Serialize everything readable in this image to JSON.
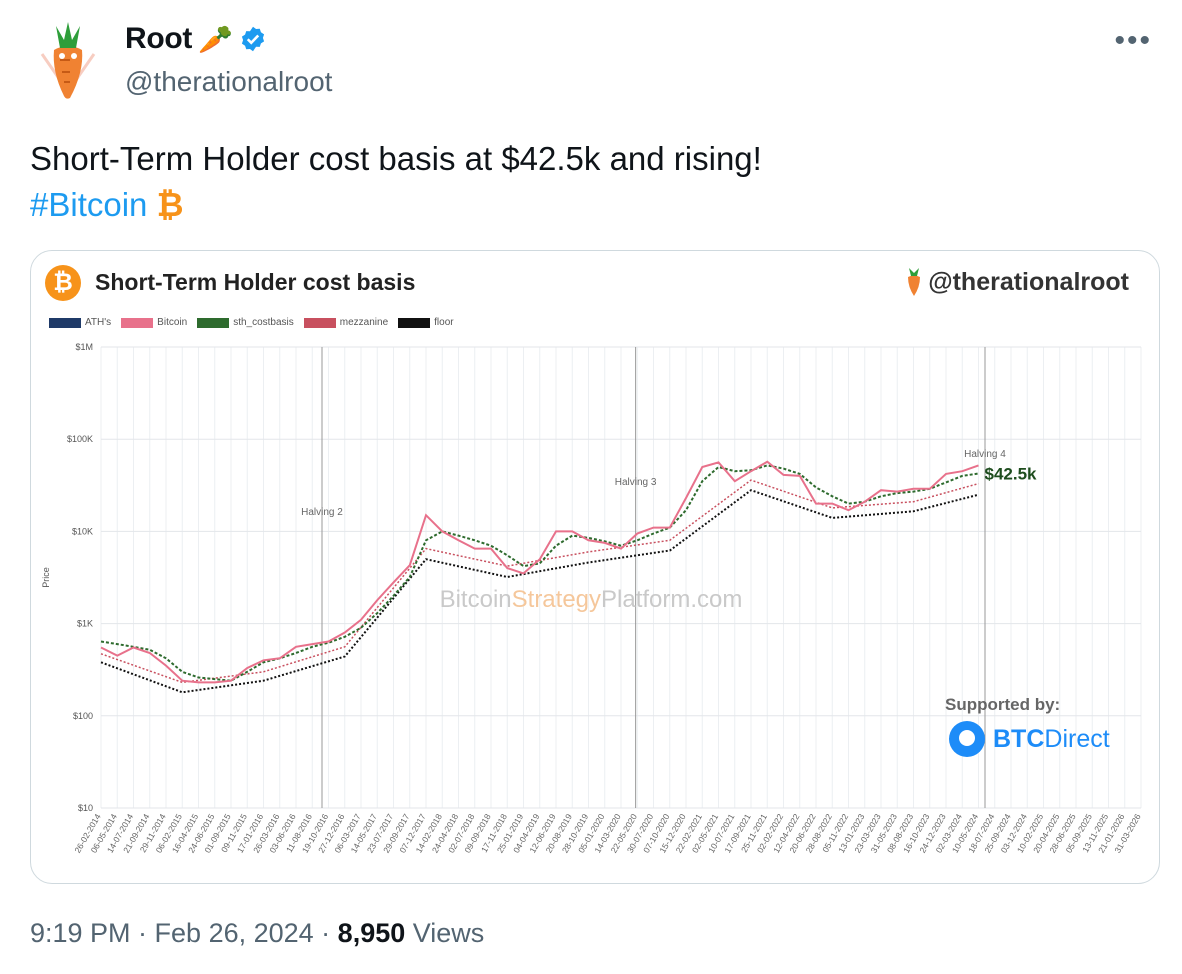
{
  "author": {
    "display_name": "Root",
    "name_emoji": "🥕",
    "handle": "@therationalroot",
    "verified": true
  },
  "more_label": "•••",
  "tweet": {
    "text": "Short-Term Holder cost basis at $42.5k and rising!",
    "hashtag": "#Bitcoin",
    "hashtag_symbol": "₿"
  },
  "card": {
    "btc_logo": "₿",
    "title": "Short-Term Holder cost basis",
    "handle": "@therationalroot",
    "supported_by": "Supported by:",
    "sponsor_bold": "BTC",
    "sponsor_light": "Direct",
    "watermark_1": "Bitcoin",
    "watermark_2": "Strategy",
    "watermark_3": "Platform.com"
  },
  "chart_data": {
    "type": "line",
    "title": "",
    "xlabel": "",
    "ylabel": "Price",
    "y_scale": "log",
    "ylim": [
      10,
      1000000
    ],
    "y_ticks": [
      "$10",
      "$100",
      "$1K",
      "$10K",
      "$100K",
      "$1M"
    ],
    "legend": [
      "ATH's",
      "Bitcoin",
      "sth_costbasis",
      "mezzanine",
      "floor"
    ],
    "legend_colors": [
      "#1f3a68",
      "#e8718b",
      "#2e6b2e",
      "#c8505f",
      "#111111"
    ],
    "x_ticks": [
      "26-02-2014",
      "06-05-2014",
      "14-07-2014",
      "21-09-2014",
      "29-11-2014",
      "06-02-2015",
      "16-04-2015",
      "24-06-2015",
      "01-09-2015",
      "09-11-2015",
      "17-01-2016",
      "26-03-2016",
      "03-06-2016",
      "11-08-2016",
      "19-10-2016",
      "27-12-2016",
      "06-03-2017",
      "14-05-2017",
      "23-07-2017",
      "29-09-2017",
      "07-12-2017",
      "14-02-2018",
      "24-04-2018",
      "02-07-2018",
      "09-09-2018",
      "17-11-2018",
      "25-01-2019",
      "04-04-2019",
      "12-06-2019",
      "20-08-2019",
      "28-10-2019",
      "05-01-2020",
      "14-03-2020",
      "22-05-2020",
      "30-07-2020",
      "07-10-2020",
      "15-12-2020",
      "22-02-2021",
      "02-05-2021",
      "10-07-2021",
      "17-09-2021",
      "25-11-2021",
      "02-02-2022",
      "12-04-2022",
      "20-06-2022",
      "28-08-2022",
      "05-11-2022",
      "13-01-2023",
      "23-03-2023",
      "31-05-2023",
      "08-08-2023",
      "16-10-2023",
      "24-12-2023",
      "02-03-2024",
      "10-05-2024",
      "18-07-2024",
      "25-09-2024",
      "03-12-2024",
      "10-02-2025",
      "20-04-2025",
      "28-06-2025",
      "05-09-2025",
      "13-11-2025",
      "21-01-2026",
      "31-03-2026"
    ],
    "annotations": [
      {
        "label": "Halving 2",
        "x_index": 13.6
      },
      {
        "label": "Halving 3",
        "x_index": 32.9
      },
      {
        "label": "Halving 4",
        "x_index": 54.4
      }
    ],
    "value_label": "$42.5k",
    "series": [
      {
        "name": "Bitcoin",
        "x": [
          0,
          1,
          2,
          3,
          4,
          5,
          6,
          7,
          8,
          9,
          10,
          11,
          12,
          13,
          14,
          15,
          16,
          17,
          18,
          19,
          20,
          21,
          22,
          23,
          24,
          25,
          26,
          27,
          28,
          29,
          30,
          31,
          32,
          33,
          34,
          35,
          36,
          37,
          38,
          39,
          40,
          41,
          42,
          43,
          44,
          45,
          46,
          47,
          48,
          49,
          50,
          51,
          52,
          53,
          54
        ],
        "values": [
          550,
          450,
          550,
          480,
          350,
          240,
          230,
          230,
          240,
          330,
          400,
          420,
          560,
          600,
          640,
          800,
          1100,
          1800,
          2800,
          4300,
          15000,
          10000,
          8000,
          6500,
          6500,
          4000,
          3500,
          5000,
          10000,
          10000,
          8000,
          7500,
          6500,
          9500,
          11000,
          11000,
          23000,
          50000,
          56000,
          35000,
          45000,
          57000,
          41000,
          40000,
          20000,
          20000,
          17000,
          21000,
          28000,
          27000,
          29000,
          29000,
          42000,
          45000,
          52000
        ]
      },
      {
        "name": "sth_costbasis",
        "x": [
          0,
          1,
          2,
          3,
          4,
          5,
          6,
          7,
          8,
          9,
          10,
          11,
          12,
          13,
          14,
          15,
          16,
          17,
          18,
          19,
          20,
          21,
          22,
          23,
          24,
          25,
          26,
          27,
          28,
          29,
          30,
          31,
          32,
          33,
          34,
          35,
          36,
          37,
          38,
          39,
          40,
          41,
          42,
          43,
          44,
          45,
          46,
          47,
          48,
          49,
          50,
          51,
          52,
          53,
          54
        ],
        "values": [
          640,
          600,
          560,
          520,
          420,
          300,
          260,
          250,
          240,
          300,
          380,
          420,
          480,
          560,
          620,
          720,
          900,
          1300,
          2000,
          3200,
          8000,
          10000,
          9000,
          8000,
          7000,
          5500,
          4200,
          4500,
          7000,
          9000,
          8500,
          7800,
          7000,
          8000,
          9500,
          11000,
          17000,
          35000,
          50000,
          45000,
          46000,
          52000,
          48000,
          42000,
          30000,
          24000,
          20000,
          21000,
          24000,
          26000,
          27000,
          29000,
          34000,
          40000,
          42500
        ]
      },
      {
        "name": "mezzanine",
        "x": [
          0,
          5,
          10,
          15,
          20,
          25,
          30,
          35,
          40,
          45,
          50,
          54
        ],
        "values": [
          470,
          230,
          300,
          560,
          6500,
          4200,
          6000,
          8000,
          36000,
          18000,
          21000,
          33000
        ]
      },
      {
        "name": "floor",
        "x": [
          0,
          5,
          10,
          15,
          20,
          25,
          30,
          35,
          40,
          45,
          50,
          54
        ],
        "values": [
          380,
          180,
          240,
          440,
          5000,
          3200,
          4600,
          6200,
          28000,
          14000,
          16500,
          25000
        ]
      }
    ]
  },
  "footer": {
    "time": "9:19 PM · Feb 26, 2024 · ",
    "views_count": "8,950",
    "views_label": " Views"
  }
}
